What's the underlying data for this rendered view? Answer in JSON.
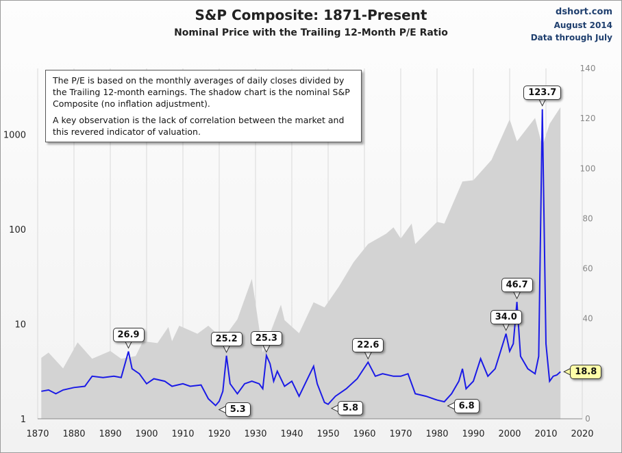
{
  "header": {
    "title": "S&P Composite: 1871-Present",
    "subtitle": "Nominal Price with the Trailing 12-Month P/E Ratio",
    "credit_site": "dshort.com",
    "credit_date": "August 2014",
    "credit_range": "Data through July"
  },
  "note": {
    "paragraph1": "The P/E is based on the monthly  averages of daily closes divided by the Trailing 12-month earnings. The shadow chart is the nominal S&P Composite (no inflation adjustment).",
    "paragraph2": "A key observation is the lack of correlation between the market and this revered  indicator of valuation."
  },
  "colors": {
    "pe_line": "#1a1ae6",
    "price_area": "#d3d3d3",
    "current_callout": "#ffffa8"
  },
  "chart_data": {
    "type": "line",
    "x_ticks": [
      1870,
      1880,
      1890,
      1900,
      1910,
      1920,
      1930,
      1940,
      1950,
      1960,
      1970,
      1980,
      1990,
      2000,
      2010,
      2020
    ],
    "xlim": [
      1870,
      2020
    ],
    "y_left_ticks": [
      1,
      10,
      100,
      1000
    ],
    "y_left_labels": [
      "1",
      "10",
      "100",
      "1000"
    ],
    "y_left_scale": "log",
    "y_left_lim": [
      1,
      5000
    ],
    "y_right_ticks": [
      0,
      20,
      40,
      60,
      80,
      100,
      120,
      140
    ],
    "y_right_lim": [
      0,
      140
    ],
    "grid": "vertical",
    "price_series": [
      [
        1871,
        4.4
      ],
      [
        1873,
        5.0
      ],
      [
        1877,
        3.4
      ],
      [
        1881,
        6.4
      ],
      [
        1885,
        4.3
      ],
      [
        1890,
        5.2
      ],
      [
        1893,
        4.3
      ],
      [
        1897,
        4.6
      ],
      [
        1899,
        6.6
      ],
      [
        1903,
        6.3
      ],
      [
        1906,
        9.3
      ],
      [
        1907,
        6.6
      ],
      [
        1909,
        9.6
      ],
      [
        1914,
        7.9
      ],
      [
        1917,
        9.6
      ],
      [
        1921,
        6.9
      ],
      [
        1925,
        11.2
      ],
      [
        1929,
        30.0
      ],
      [
        1932,
        5.0
      ],
      [
        1937,
        16.0
      ],
      [
        1938,
        11.0
      ],
      [
        1942,
        8.0
      ],
      [
        1946,
        17.0
      ],
      [
        1949,
        15.0
      ],
      [
        1953,
        25.0
      ],
      [
        1957,
        45.0
      ],
      [
        1961,
        70.0
      ],
      [
        1966,
        90.0
      ],
      [
        1968,
        105.0
      ],
      [
        1970,
        80.0
      ],
      [
        1973,
        115.0
      ],
      [
        1974,
        70.0
      ],
      [
        1980,
        120.0
      ],
      [
        1982,
        115.0
      ],
      [
        1987,
        320.0
      ],
      [
        1990,
        330.0
      ],
      [
        1995,
        540.0
      ],
      [
        2000,
        1450.0
      ],
      [
        2002,
        850.0
      ],
      [
        2007,
        1500.0
      ],
      [
        2009,
        750.0
      ],
      [
        2011,
        1300.0
      ],
      [
        2014,
        1950.0
      ]
    ],
    "pe_series": [
      [
        1871,
        11.0
      ],
      [
        1873,
        11.5
      ],
      [
        1875,
        10.0
      ],
      [
        1877,
        11.5
      ],
      [
        1880,
        12.5
      ],
      [
        1883,
        13.0
      ],
      [
        1885,
        17.0
      ],
      [
        1888,
        16.5
      ],
      [
        1891,
        17.0
      ],
      [
        1893,
        16.5
      ],
      [
        1895,
        26.9
      ],
      [
        1896,
        20.0
      ],
      [
        1898,
        18.0
      ],
      [
        1900,
        14.0
      ],
      [
        1902,
        16.0
      ],
      [
        1905,
        15.0
      ],
      [
        1907,
        13.0
      ],
      [
        1910,
        14.0
      ],
      [
        1912,
        13.0
      ],
      [
        1915,
        13.5
      ],
      [
        1917,
        8.0
      ],
      [
        1919,
        5.3
      ],
      [
        1920,
        7.0
      ],
      [
        1921,
        11.0
      ],
      [
        1922,
        25.2
      ],
      [
        1923,
        14.0
      ],
      [
        1925,
        10.0
      ],
      [
        1927,
        14.0
      ],
      [
        1929,
        15.0
      ],
      [
        1931,
        14.0
      ],
      [
        1932,
        12.0
      ],
      [
        1933,
        25.3
      ],
      [
        1934,
        22.0
      ],
      [
        1935,
        15.0
      ],
      [
        1936,
        19.0
      ],
      [
        1938,
        13.0
      ],
      [
        1940,
        15.0
      ],
      [
        1942,
        9.0
      ],
      [
        1944,
        15.0
      ],
      [
        1946,
        21.0
      ],
      [
        1947,
        14.0
      ],
      [
        1949,
        6.5
      ],
      [
        1950,
        5.8
      ],
      [
        1952,
        9.0
      ],
      [
        1955,
        12.0
      ],
      [
        1958,
        16.0
      ],
      [
        1961,
        22.6
      ],
      [
        1963,
        17.0
      ],
      [
        1965,
        18.0
      ],
      [
        1968,
        17.0
      ],
      [
        1970,
        17.0
      ],
      [
        1972,
        18.0
      ],
      [
        1974,
        10.0
      ],
      [
        1977,
        9.0
      ],
      [
        1980,
        7.5
      ],
      [
        1982,
        6.8
      ],
      [
        1984,
        10.0
      ],
      [
        1986,
        15.0
      ],
      [
        1987,
        20.0
      ],
      [
        1988,
        12.0
      ],
      [
        1990,
        15.0
      ],
      [
        1992,
        24.0
      ],
      [
        1994,
        17.0
      ],
      [
        1996,
        20.0
      ],
      [
        1999,
        34.0
      ],
      [
        2000,
        27.0
      ],
      [
        2001,
        30.0
      ],
      [
        2002,
        46.7
      ],
      [
        2003,
        25.0
      ],
      [
        2005,
        20.0
      ],
      [
        2007,
        18.0
      ],
      [
        2008,
        25.0
      ],
      [
        2009,
        123.7
      ],
      [
        2010,
        30.0
      ],
      [
        2011,
        15.0
      ],
      [
        2012,
        17.0
      ],
      [
        2013,
        17.5
      ],
      [
        2014,
        18.8
      ]
    ],
    "callouts": [
      {
        "label": "26.9",
        "year": 1895,
        "pe": 26.9,
        "pointer": "down"
      },
      {
        "label": "25.2",
        "year": 1922,
        "pe": 25.2,
        "pointer": "down"
      },
      {
        "label": "5.3",
        "year": 1919,
        "pe": 5.3,
        "pointer": "left"
      },
      {
        "label": "25.3",
        "year": 1933,
        "pe": 25.3,
        "pointer": "down"
      },
      {
        "label": "5.8",
        "year": 1950,
        "pe": 5.8,
        "pointer": "left"
      },
      {
        "label": "22.6",
        "year": 1961,
        "pe": 22.6,
        "pointer": "down"
      },
      {
        "label": "6.8",
        "year": 1982,
        "pe": 6.8,
        "pointer": "left"
      },
      {
        "label": "34.0",
        "year": 1999,
        "pe": 34.0,
        "pointer": "down"
      },
      {
        "label": "46.7",
        "year": 2002,
        "pe": 46.7,
        "pointer": "down"
      },
      {
        "label": "123.7",
        "year": 2009,
        "pe": 123.7,
        "pointer": "down"
      },
      {
        "label": "18.8",
        "year": 2014,
        "pe": 18.8,
        "pointer": "left",
        "current": true
      }
    ]
  }
}
